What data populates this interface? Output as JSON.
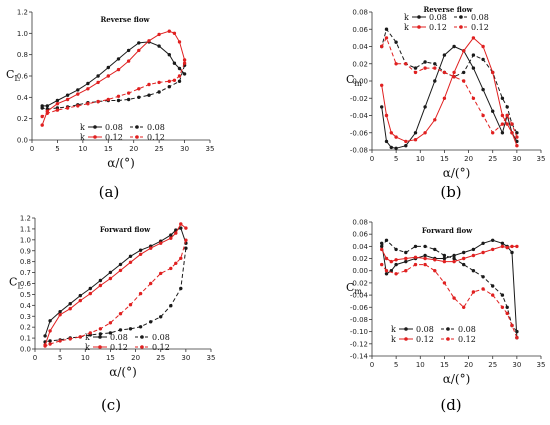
{
  "figure": {
    "colors": {
      "black": "#1a1a1a",
      "red": "#e02020"
    }
  },
  "chart_data": [
    {
      "id": "a",
      "type": "line",
      "panel_label": "(a)",
      "title": "Reverse flow",
      "ylabel": "C",
      "ylabel_sub": "L",
      "xlabel": "α/(°)",
      "xlim": [
        0,
        35
      ],
      "ylim": [
        0.0,
        1.2
      ],
      "xticks": [
        "0",
        "5",
        "10",
        "15",
        "20",
        "25",
        "30",
        "35"
      ],
      "yticks": [
        "0.0",
        "0.2",
        "0.4",
        "0.6",
        "0.8",
        "1.0",
        "1.2"
      ],
      "legend": {
        "header": "k",
        "labels": [
          "0.08",
          "0.08",
          "0.12",
          "0.12"
        ]
      },
      "series": [
        {
          "name": "0.08",
          "color": "#1a1a1a",
          "dash": false,
          "x": [
            2,
            3,
            5,
            7,
            9,
            11,
            13,
            15,
            17,
            19,
            21,
            23,
            25,
            27,
            28,
            29,
            30
          ],
          "y": [
            0.32,
            0.32,
            0.37,
            0.42,
            0.47,
            0.53,
            0.6,
            0.68,
            0.76,
            0.84,
            0.91,
            0.92,
            0.88,
            0.8,
            0.72,
            0.67,
            0.62
          ]
        },
        {
          "name": "0.08",
          "color": "#1a1a1a",
          "dash": true,
          "x": [
            30,
            29,
            27,
            25,
            23,
            21,
            19,
            17,
            15,
            13,
            11,
            9,
            7,
            5,
            3,
            2
          ],
          "y": [
            0.7,
            0.55,
            0.5,
            0.45,
            0.42,
            0.4,
            0.38,
            0.37,
            0.37,
            0.36,
            0.35,
            0.33,
            0.31,
            0.3,
            0.29,
            0.3
          ]
        },
        {
          "name": "0.12",
          "color": "#e02020",
          "dash": false,
          "x": [
            2,
            3,
            5,
            7,
            9,
            11,
            13,
            15,
            17,
            19,
            21,
            23,
            25,
            27,
            28,
            29,
            30
          ],
          "y": [
            0.14,
            0.27,
            0.34,
            0.38,
            0.43,
            0.48,
            0.54,
            0.6,
            0.66,
            0.74,
            0.84,
            0.93,
            0.99,
            1.02,
            1.0,
            0.92,
            0.75
          ]
        },
        {
          "name": "0.12",
          "color": "#e02020",
          "dash": true,
          "x": [
            30,
            29,
            28,
            27,
            25,
            23,
            21,
            19,
            17,
            15,
            13,
            11,
            9,
            7,
            5,
            3,
            2
          ],
          "y": [
            0.72,
            0.6,
            0.56,
            0.55,
            0.54,
            0.52,
            0.48,
            0.44,
            0.41,
            0.38,
            0.36,
            0.34,
            0.32,
            0.3,
            0.28,
            0.25,
            0.22
          ]
        }
      ]
    },
    {
      "id": "b",
      "type": "line",
      "panel_label": "(b)",
      "title": "Reverse flow",
      "ylabel": "C",
      "ylabel_sub": "m",
      "xlabel": "α/(°)",
      "xlim": [
        0,
        35
      ],
      "ylim": [
        -0.08,
        0.08
      ],
      "xticks": [
        "0",
        "5",
        "10",
        "15",
        "20",
        "25",
        "30",
        "35"
      ],
      "yticks": [
        "-0.08",
        "-0.06",
        "-0.04",
        "-0.02",
        "0.00",
        "0.02",
        "0.04",
        "0.06",
        "0.08"
      ],
      "legend": {
        "header": "k",
        "labels": [
          "0.08",
          "0.08",
          "0.12",
          "0.12"
        ]
      },
      "series": [
        {
          "name": "0.08",
          "color": "#1a1a1a",
          "dash": false,
          "x": [
            2,
            3,
            4,
            5,
            7,
            9,
            11,
            13,
            15,
            17,
            19,
            21,
            23,
            25,
            27,
            28,
            29,
            30
          ],
          "y": [
            -0.03,
            -0.07,
            -0.077,
            -0.078,
            -0.075,
            -0.06,
            -0.03,
            0.0,
            0.03,
            0.04,
            0.035,
            0.015,
            -0.01,
            -0.035,
            -0.06,
            -0.04,
            -0.06,
            -0.07
          ]
        },
        {
          "name": "0.08",
          "color": "#1a1a1a",
          "dash": true,
          "x": [
            30,
            29,
            28,
            27,
            25,
            23,
            21,
            19,
            17,
            15,
            13,
            11,
            9,
            7,
            5,
            3,
            2
          ],
          "y": [
            -0.06,
            -0.05,
            -0.03,
            -0.02,
            0.01,
            0.025,
            0.03,
            0.01,
            0.005,
            0.01,
            0.02,
            0.022,
            0.015,
            0.02,
            0.045,
            0.06,
            0.04
          ]
        },
        {
          "name": "0.12",
          "color": "#e02020",
          "dash": false,
          "x": [
            2,
            3,
            4,
            5,
            7,
            9,
            11,
            13,
            15,
            17,
            19,
            21,
            23,
            25,
            27,
            28,
            29,
            30
          ],
          "y": [
            -0.005,
            -0.04,
            -0.06,
            -0.065,
            -0.07,
            -0.068,
            -0.06,
            -0.045,
            -0.02,
            0.01,
            0.035,
            0.05,
            0.04,
            0.01,
            -0.04,
            -0.05,
            -0.06,
            -0.075
          ]
        },
        {
          "name": "0.12",
          "color": "#e02020",
          "dash": true,
          "x": [
            30,
            29,
            28,
            27,
            25,
            23,
            21,
            19,
            17,
            15,
            13,
            11,
            9,
            7,
            5,
            3,
            2
          ],
          "y": [
            -0.065,
            -0.05,
            -0.04,
            -0.05,
            -0.06,
            -0.04,
            -0.02,
            0.0,
            0.005,
            0.01,
            0.015,
            0.015,
            0.01,
            0.02,
            0.02,
            0.05,
            0.04
          ]
        }
      ]
    },
    {
      "id": "c",
      "type": "line",
      "panel_label": "(c)",
      "title": "Forward flow",
      "ylabel": "C",
      "ylabel_sub": "L",
      "xlabel": "α/(°)",
      "xlim": [
        0,
        35
      ],
      "ylim": [
        -0.1,
        1.2
      ],
      "xticks": [
        "0",
        "5",
        "10",
        "15",
        "20",
        "25",
        "30",
        "35"
      ],
      "yticks": [
        "0.0",
        "0.1",
        "0.2",
        "0.3",
        "0.4",
        "0.5",
        "0.6",
        "0.7",
        "0.8",
        "0.9",
        "1.0",
        "1.1",
        "1.2"
      ],
      "legend": {
        "header": "k",
        "labels": [
          "0.08",
          "0.08",
          "0.12",
          "0.12"
        ]
      },
      "series": [
        {
          "name": "0.08",
          "color": "#1a1a1a",
          "dash": false,
          "x": [
            2,
            3,
            5,
            7,
            9,
            11,
            13,
            15,
            17,
            19,
            21,
            23,
            25,
            27,
            28,
            29,
            30
          ],
          "y": [
            0.03,
            0.18,
            0.27,
            0.35,
            0.43,
            0.5,
            0.58,
            0.66,
            0.74,
            0.82,
            0.88,
            0.92,
            0.97,
            1.03,
            1.08,
            1.1,
            0.95
          ]
        },
        {
          "name": "0.08",
          "color": "#1a1a1a",
          "dash": true,
          "x": [
            30,
            29,
            27,
            25,
            23,
            21,
            19,
            17,
            15,
            13,
            11,
            9,
            7,
            5,
            3,
            2
          ],
          "y": [
            0.9,
            0.5,
            0.33,
            0.22,
            0.17,
            0.12,
            0.1,
            0.09,
            0.06,
            0.05,
            0.04,
            0.02,
            0.01,
            -0.01,
            -0.02,
            -0.03
          ]
        },
        {
          "name": "0.12",
          "color": "#e02020",
          "dash": false,
          "x": [
            2,
            3,
            5,
            7,
            9,
            11,
            13,
            15,
            17,
            19,
            21,
            23,
            25,
            27,
            28,
            29,
            30
          ],
          "y": [
            -0.06,
            0.08,
            0.24,
            0.3,
            0.38,
            0.45,
            0.53,
            0.6,
            0.68,
            0.76,
            0.84,
            0.9,
            0.95,
            1.0,
            1.05,
            1.14,
            1.1
          ]
        },
        {
          "name": "0.12",
          "color": "#e02020",
          "dash": true,
          "x": [
            30,
            29,
            28,
            27,
            25,
            23,
            21,
            19,
            17,
            15,
            13,
            11,
            9,
            7,
            5,
            3,
            2
          ],
          "y": [
            0.98,
            0.8,
            0.75,
            0.7,
            0.65,
            0.55,
            0.45,
            0.34,
            0.25,
            0.16,
            0.1,
            0.06,
            0.02,
            0.0,
            -0.02,
            -0.05,
            -0.07
          ]
        }
      ]
    },
    {
      "id": "d",
      "type": "line",
      "panel_label": "(d)",
      "title": "Forward flow",
      "ylabel": "C",
      "ylabel_sub": "m",
      "xlabel": "α/(°)",
      "xlim": [
        0,
        35
      ],
      "ylim": [
        -0.14,
        0.08
      ],
      "xticks": [
        "0",
        "5",
        "10",
        "15",
        "20",
        "25",
        "30",
        "35"
      ],
      "yticks": [
        "-0.14",
        "-0.12",
        "-0.10",
        "-0.08",
        "-0.06",
        "-0.04",
        "-0.02",
        "0.00",
        "0.02",
        "0.04",
        "0.06",
        "0.08"
      ],
      "legend": {
        "header": "k",
        "labels": [
          "0.08",
          "0.08",
          "0.12",
          "0.12"
        ]
      },
      "series": [
        {
          "name": "0.08",
          "color": "#1a1a1a",
          "dash": false,
          "x": [
            2,
            3,
            4,
            5,
            7,
            9,
            11,
            13,
            15,
            17,
            19,
            21,
            23,
            25,
            27,
            28,
            29,
            30
          ],
          "y": [
            0.045,
            -0.005,
            0.0,
            0.01,
            0.015,
            0.02,
            0.025,
            0.02,
            0.02,
            0.025,
            0.03,
            0.035,
            0.045,
            0.05,
            0.045,
            0.04,
            0.03,
            -0.11
          ]
        },
        {
          "name": "0.08",
          "color": "#1a1a1a",
          "dash": true,
          "x": [
            30,
            29,
            28,
            27,
            25,
            23,
            21,
            19,
            17,
            15,
            13,
            11,
            9,
            7,
            5,
            3,
            2
          ],
          "y": [
            -0.1,
            -0.09,
            -0.06,
            -0.04,
            -0.025,
            -0.01,
            0.0,
            0.01,
            0.02,
            0.025,
            0.035,
            0.04,
            0.04,
            0.03,
            0.035,
            0.05,
            0.04
          ]
        },
        {
          "name": "0.12",
          "color": "#e02020",
          "dash": false,
          "x": [
            2,
            3,
            4,
            5,
            7,
            9,
            11,
            13,
            15,
            17,
            19,
            21,
            23,
            25,
            27,
            28,
            29,
            30
          ],
          "y": [
            0.035,
            0.02,
            0.015,
            0.018,
            0.02,
            0.022,
            0.02,
            0.018,
            0.015,
            0.015,
            0.02,
            0.025,
            0.03,
            0.035,
            0.04,
            0.038,
            0.04,
            0.04
          ]
        },
        {
          "name": "0.12",
          "color": "#e02020",
          "dash": true,
          "x": [
            30,
            29,
            28,
            27,
            25,
            23,
            21,
            19,
            17,
            15,
            13,
            11,
            9,
            7,
            5,
            3,
            2
          ],
          "y": [
            -0.11,
            -0.09,
            -0.07,
            -0.06,
            -0.04,
            -0.03,
            -0.035,
            -0.06,
            -0.045,
            -0.02,
            0.0,
            0.01,
            0.01,
            0.0,
            -0.005,
            0.0,
            0.01
          ]
        }
      ]
    }
  ]
}
